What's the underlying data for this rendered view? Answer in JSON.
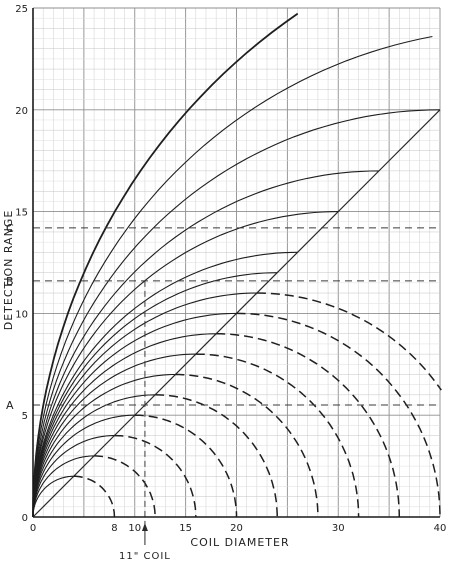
{
  "chart_data": {
    "type": "line",
    "title": "",
    "xlabel": "COIL DIAMETER",
    "ylabel": "DETECTION RANGE",
    "xlim": [
      0,
      40
    ],
    "ylim": [
      0,
      25
    ],
    "x_tick_labels": [
      {
        "value": 0,
        "label": "0"
      },
      {
        "value": 8,
        "label": "8"
      },
      {
        "value": 10,
        "label": "10"
      },
      {
        "value": 15,
        "label": "15"
      },
      {
        "value": 20,
        "label": "20"
      },
      {
        "value": 30,
        "label": "30"
      },
      {
        "value": 40,
        "label": "40"
      }
    ],
    "y_tick_labels": [
      {
        "value": 0,
        "label": "0"
      },
      {
        "value": 5,
        "label": "5"
      },
      {
        "value": 10,
        "label": "10"
      },
      {
        "value": 15,
        "label": "15"
      },
      {
        "value": 20,
        "label": "20"
      },
      {
        "value": 25,
        "label": "25"
      }
    ],
    "grid": true,
    "reference_line": {
      "x": [
        0,
        40
      ],
      "y": [
        0,
        20
      ]
    },
    "curve_peaks": [
      {
        "x": 4,
        "y": 2
      },
      {
        "x": 6,
        "y": 3
      },
      {
        "x": 8,
        "y": 4
      },
      {
        "x": 10,
        "y": 5
      },
      {
        "x": 12,
        "y": 6
      },
      {
        "x": 14,
        "y": 7
      },
      {
        "x": 16,
        "y": 8
      },
      {
        "x": 18,
        "y": 9
      },
      {
        "x": 20,
        "y": 10
      },
      {
        "x": 22,
        "y": 11
      },
      {
        "x": 24,
        "y": 12
      },
      {
        "x": 26,
        "y": 13
      },
      {
        "x": 30,
        "y": 15
      },
      {
        "x": 34,
        "y": 17
      },
      {
        "x": 40,
        "y": 20
      },
      {
        "x": 48,
        "y": 24
      },
      {
        "x": 60,
        "y": 30
      }
    ],
    "markers": [
      {
        "label": "A",
        "y": 5.5
      },
      {
        "label": "B",
        "y": 11.6
      },
      {
        "label": "C",
        "y": 14.2
      }
    ],
    "annotation": {
      "label": "11\" COIL",
      "x": 11
    }
  }
}
